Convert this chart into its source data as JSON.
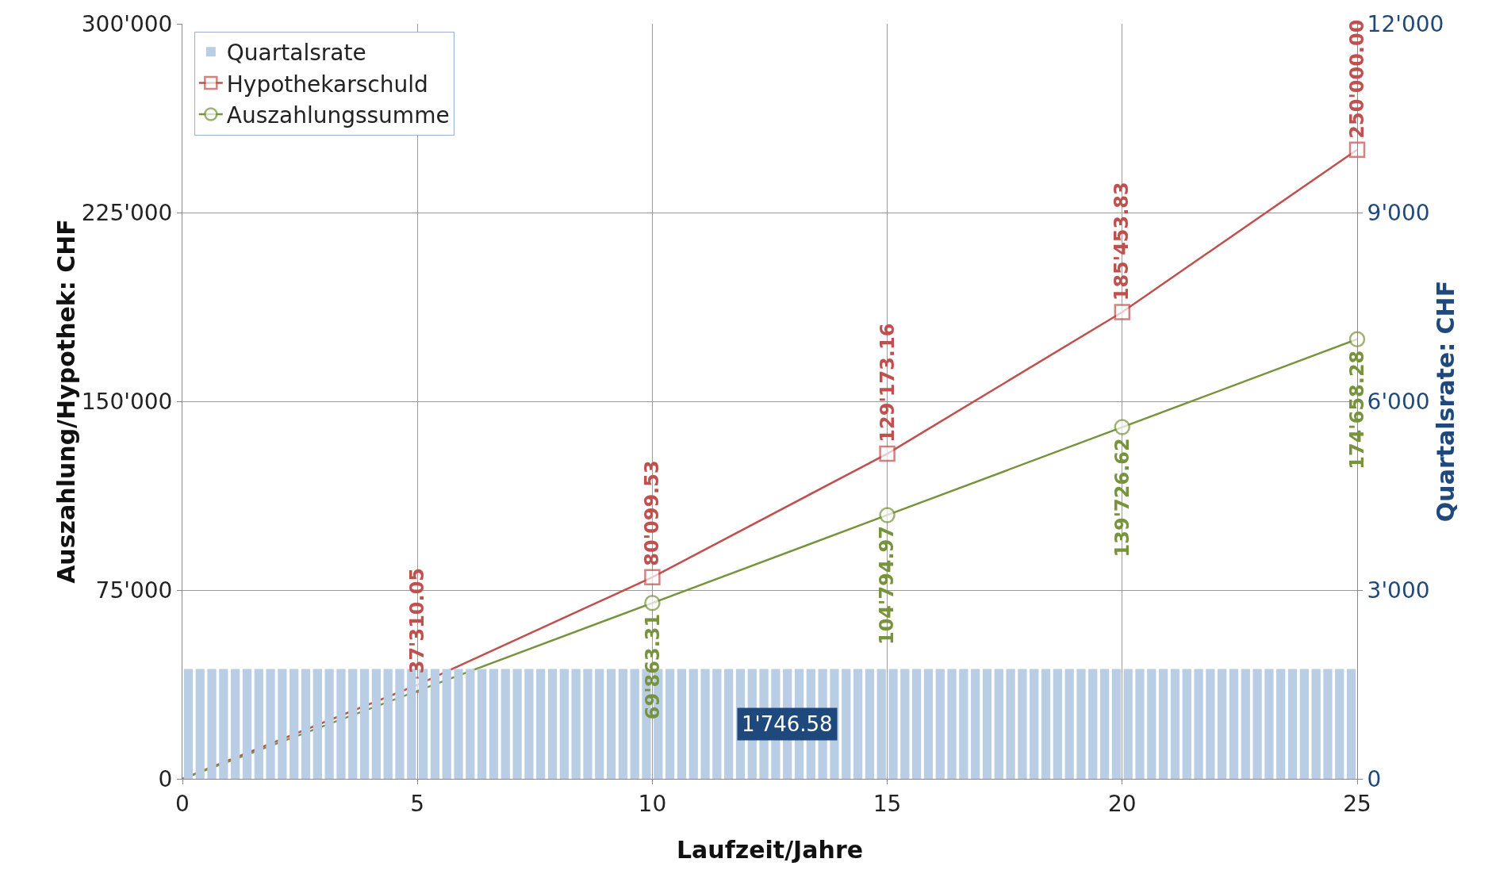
{
  "chart_data": {
    "type": "line",
    "xlabel": "Laufzeit/Jahre",
    "ylabel": "Auszahlung/Hypothek: CHF",
    "y2label": "Quartalsrate: CHF",
    "xlim": [
      0,
      25
    ],
    "xticks": [
      0,
      5,
      10,
      15,
      20,
      25
    ],
    "ylim": [
      0,
      300000
    ],
    "yticks": [
      0,
      {
        "value": 75000,
        "label": "75'000"
      },
      {
        "value": 150000,
        "label": "150'000"
      },
      {
        "value": 225000,
        "label": "225'000"
      },
      {
        "value": 300000,
        "label": "300'000"
      }
    ],
    "y2lim": [
      0,
      12000
    ],
    "y2ticks": [
      0,
      {
        "value": 3000,
        "label": "3'000"
      },
      {
        "value": 6000,
        "label": "6'000"
      },
      {
        "value": 9000,
        "label": "9'000"
      },
      {
        "value": 12000,
        "label": "12'000"
      }
    ],
    "grid": true,
    "legend": "top left",
    "series": [
      {
        "name": "Quartalsrate",
        "type": "bar",
        "axis": "y2",
        "color": "#b9cde5",
        "x": [
          0.125,
          0.375,
          0.625,
          0.875,
          1.125,
          1.375,
          1.625,
          1.875,
          2.125,
          2.375,
          2.625,
          2.875,
          3.125,
          3.375,
          3.625,
          3.875,
          4.125,
          4.375,
          4.625,
          4.875,
          5.125,
          5.375,
          5.625,
          5.875,
          6.125,
          6.375,
          6.625,
          6.875,
          7.125,
          7.375,
          7.625,
          7.875,
          8.125,
          8.375,
          8.625,
          8.875,
          9.125,
          9.375,
          9.625,
          9.875,
          10.125,
          10.375,
          10.625,
          10.875,
          11.125,
          11.375,
          11.625,
          11.875,
          12.125,
          12.375,
          12.625,
          12.875,
          13.125,
          13.375,
          13.625,
          13.875,
          14.125,
          14.375,
          14.625,
          14.875,
          15.125,
          15.375,
          15.625,
          15.875,
          16.125,
          16.375,
          16.625,
          16.875,
          17.125,
          17.375,
          17.625,
          17.875,
          18.125,
          18.375,
          18.625,
          18.875,
          19.125,
          19.375,
          19.625,
          19.875,
          20.125,
          20.375,
          20.625,
          20.875,
          21.125,
          21.375,
          21.625,
          21.875,
          22.125,
          22.375,
          22.625,
          22.875,
          23.125,
          23.375,
          23.625,
          23.875,
          24.125,
          24.375,
          24.625,
          24.875
        ],
        "values": [
          1746.58,
          1746.58,
          1746.58,
          1746.58,
          1746.58,
          1746.58,
          1746.58,
          1746.58,
          1746.58,
          1746.58,
          1746.58,
          1746.58,
          1746.58,
          1746.58,
          1746.58,
          1746.58,
          1746.58,
          1746.58,
          1746.58,
          1746.58,
          1746.58,
          1746.58,
          1746.58,
          1746.58,
          1746.58,
          1746.58,
          1746.58,
          1746.58,
          1746.58,
          1746.58,
          1746.58,
          1746.58,
          1746.58,
          1746.58,
          1746.58,
          1746.58,
          1746.58,
          1746.58,
          1746.58,
          1746.58,
          1746.58,
          1746.58,
          1746.58,
          1746.58,
          1746.58,
          1746.58,
          1746.58,
          1746.58,
          1746.58,
          1746.58,
          1746.58,
          1746.58,
          1746.58,
          1746.58,
          1746.58,
          1746.58,
          1746.58,
          1746.58,
          1746.58,
          1746.58,
          1746.58,
          1746.58,
          1746.58,
          1746.58,
          1746.58,
          1746.58,
          1746.58,
          1746.58,
          1746.58,
          1746.58,
          1746.58,
          1746.58,
          1746.58,
          1746.58,
          1746.58,
          1746.58,
          1746.58,
          1746.58,
          1746.58,
          1746.58,
          1746.58,
          1746.58,
          1746.58,
          1746.58,
          1746.58,
          1746.58,
          1746.58,
          1746.58,
          1746.58,
          1746.58,
          1746.58,
          1746.58,
          1746.58,
          1746.58,
          1746.58,
          1746.58,
          1746.58,
          1746.58,
          1746.58,
          1746.58
        ],
        "value_labels": [
          null,
          null,
          null,
          null,
          null,
          null,
          null,
          null,
          null,
          null,
          null,
          null,
          null,
          null,
          null,
          null,
          null,
          null,
          null,
          null,
          null,
          null,
          null,
          null,
          null,
          null,
          null,
          null,
          null,
          null,
          null,
          null,
          null,
          null,
          null,
          null,
          null,
          null,
          null,
          null,
          null,
          null,
          null,
          null,
          null,
          null,
          null,
          null,
          null,
          null,
          null,
          "1'746.58",
          null,
          null,
          null,
          null,
          null,
          null,
          null,
          null,
          null,
          null,
          null,
          null,
          null,
          null,
          null,
          null,
          null,
          null,
          null,
          null,
          null,
          null,
          null,
          null,
          null,
          null,
          null,
          null,
          null,
          null,
          null,
          null,
          null,
          null,
          null,
          null,
          null,
          null,
          null,
          null,
          null,
          null,
          null,
          null,
          null,
          null,
          null,
          null
        ]
      },
      {
        "name": "Hypothekarschuld",
        "marker": "square",
        "color": "#c0504d",
        "x": [
          0,
          5,
          10,
          15,
          20,
          25
        ],
        "values": [
          0,
          37310.05,
          80099.53,
          129173.16,
          185453.83,
          250000.0
        ],
        "value_labels": [
          null,
          "37'310.05",
          "80'099.53",
          "129'173.16",
          "185'453.83",
          "250'000.00"
        ]
      },
      {
        "name": "Auszahlungssumme",
        "marker": "circle",
        "color": "#77933c",
        "x": [
          0,
          5,
          10,
          15,
          20,
          25
        ],
        "values": [
          0,
          null,
          69863.31,
          104794.97,
          139726.62,
          174658.28
        ],
        "value_labels": [
          null,
          null,
          "69'863.31",
          "104'794.97",
          "139'726.62",
          "174'658.28"
        ]
      }
    ]
  }
}
